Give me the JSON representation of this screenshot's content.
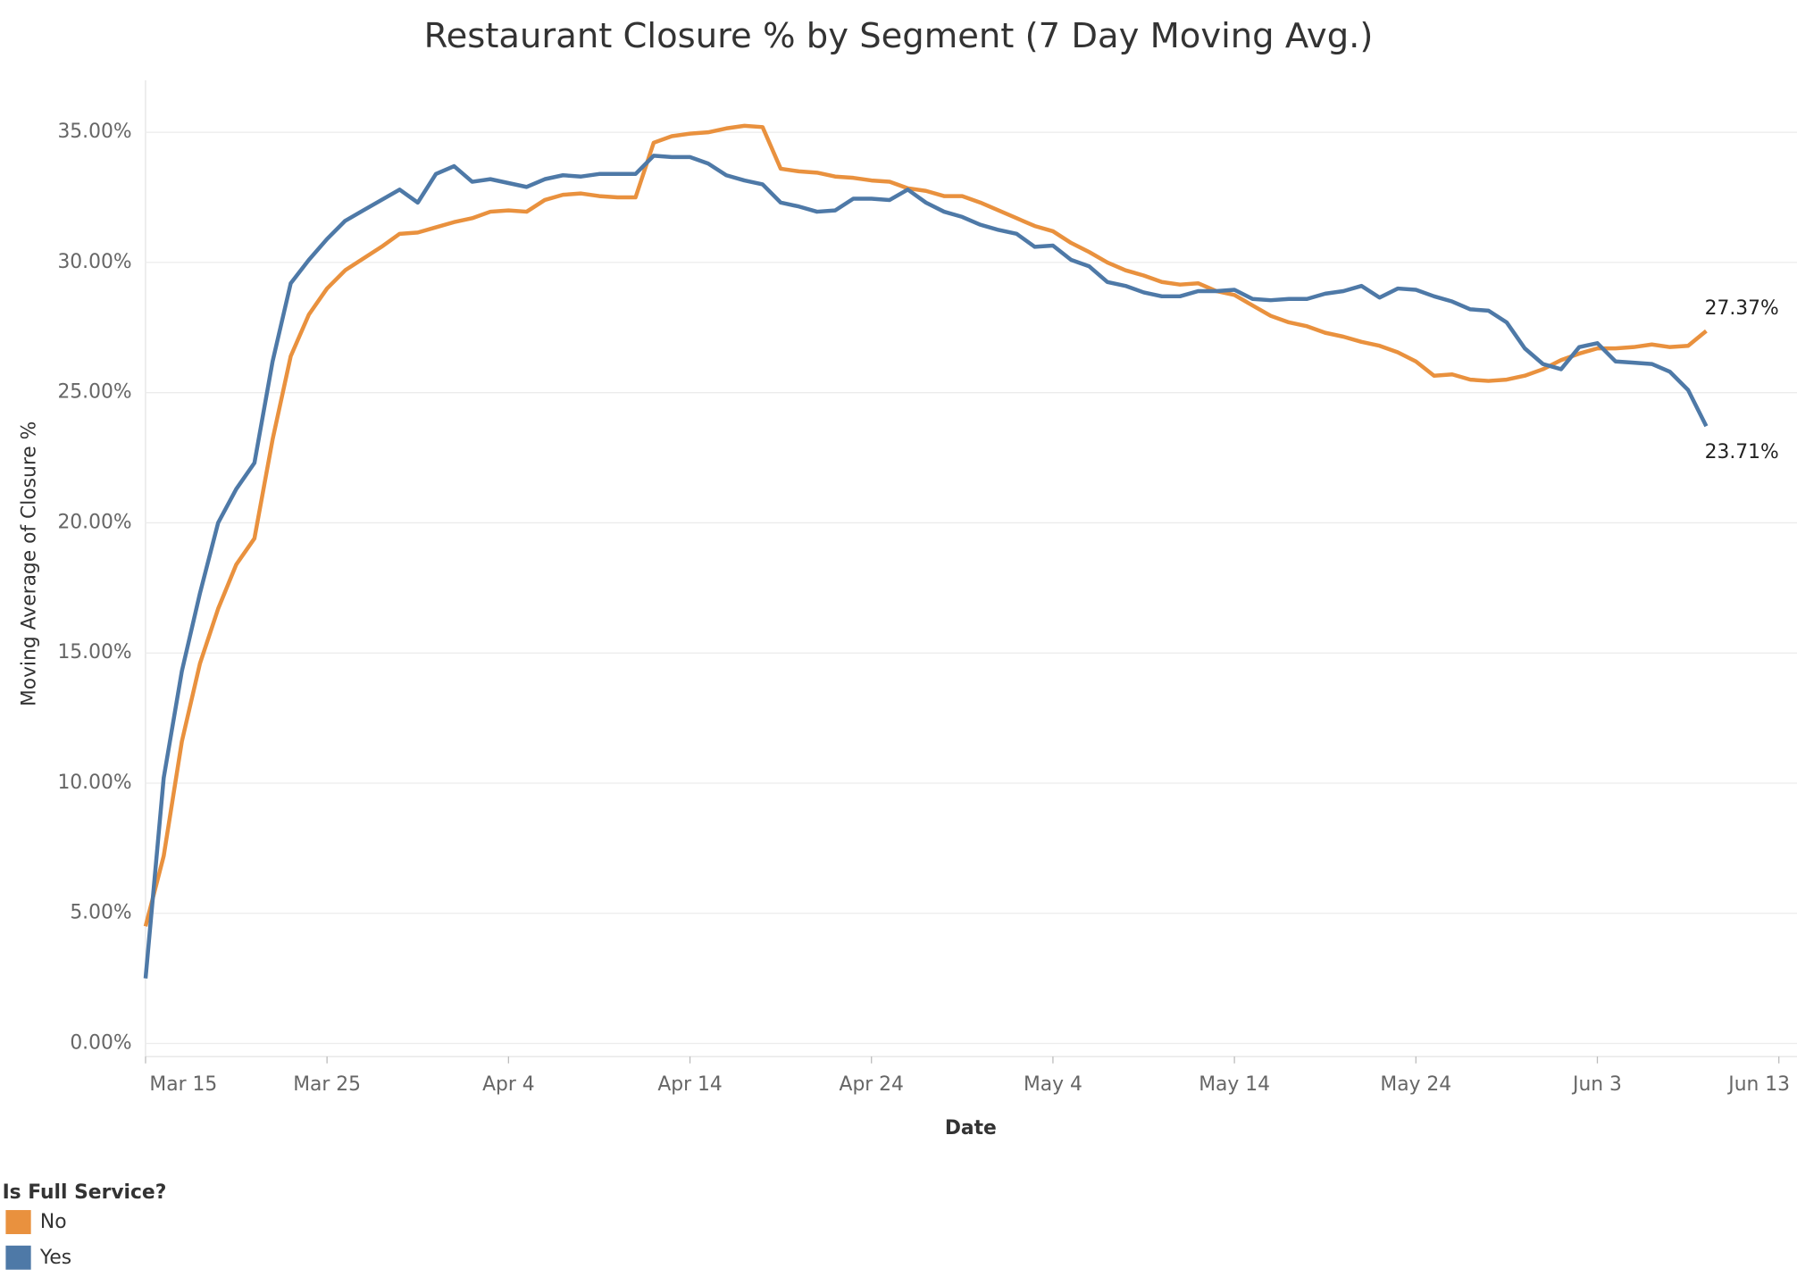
{
  "chart_data": {
    "type": "line",
    "title": "Restaurant Closure % by Segment (7 Day Moving Avg.)",
    "x_label": "Date",
    "y_label": "Moving Average of Closure %",
    "legend_title": "Is Full Service?",
    "legend": "bottom-left",
    "grid": true,
    "x": [
      "Mar 15",
      "Mar 16",
      "Mar 17",
      "Mar 18",
      "Mar 19",
      "Mar 20",
      "Mar 21",
      "Mar 22",
      "Mar 23",
      "Mar 24",
      "Mar 25",
      "Mar 26",
      "Mar 27",
      "Mar 28",
      "Mar 29",
      "Mar 30",
      "Mar 31",
      "Apr 1",
      "Apr 2",
      "Apr 3",
      "Apr 4",
      "Apr 5",
      "Apr 6",
      "Apr 7",
      "Apr 8",
      "Apr 9",
      "Apr 10",
      "Apr 11",
      "Apr 12",
      "Apr 13",
      "Apr 14",
      "Apr 15",
      "Apr 16",
      "Apr 17",
      "Apr 18",
      "Apr 19",
      "Apr 20",
      "Apr 21",
      "Apr 22",
      "Apr 23",
      "Apr 24",
      "Apr 25",
      "Apr 26",
      "Apr 27",
      "Apr 28",
      "Apr 29",
      "Apr 30",
      "May 1",
      "May 2",
      "May 3",
      "May 4",
      "May 5",
      "May 6",
      "May 7",
      "May 8",
      "May 9",
      "May 10",
      "May 11",
      "May 12",
      "May 13",
      "May 14",
      "May 15",
      "May 16",
      "May 17",
      "May 18",
      "May 19",
      "May 20",
      "May 21",
      "May 22",
      "May 23",
      "May 24",
      "May 25",
      "May 26",
      "May 27",
      "May 28",
      "May 29",
      "May 30",
      "May 31",
      "Jun 1",
      "Jun 2",
      "Jun 3",
      "Jun 4",
      "Jun 5",
      "Jun 6",
      "Jun 7",
      "Jun 8",
      "Jun 9"
    ],
    "xlim": [
      "Mar 15",
      "Jun 14"
    ],
    "xticks": [
      "Mar 15",
      "Mar 25",
      "Apr 4",
      "Apr 14",
      "Apr 24",
      "May 4",
      "May 14",
      "May 24",
      "Jun 3",
      "Jun 13"
    ],
    "ylim": [
      -0.5,
      37
    ],
    "yticks": [
      {
        "value": 0,
        "label": "0.00%"
      },
      {
        "value": 5,
        "label": "5.00%"
      },
      {
        "value": 10,
        "label": "10.00%"
      },
      {
        "value": 15,
        "label": "15.00%"
      },
      {
        "value": 20,
        "label": "20.00%"
      },
      {
        "value": 25,
        "label": "25.00%"
      },
      {
        "value": 30,
        "label": "30.00%"
      },
      {
        "value": 35,
        "label": "35.00%"
      }
    ],
    "series": [
      {
        "name": "No",
        "color": "#e9913e",
        "values": [
          4.5,
          7.2,
          11.6,
          14.6,
          16.7,
          18.4,
          19.4,
          23.2,
          26.4,
          28.0,
          29.0,
          29.7,
          30.15,
          30.6,
          31.1,
          31.15,
          31.35,
          31.55,
          31.7,
          31.95,
          32.0,
          31.95,
          32.4,
          32.6,
          32.65,
          32.55,
          32.5,
          32.5,
          34.6,
          34.85,
          34.95,
          35.0,
          35.15,
          35.25,
          35.2,
          33.6,
          33.5,
          33.45,
          33.3,
          33.25,
          33.15,
          33.1,
          32.85,
          32.75,
          32.55,
          32.55,
          32.3,
          32.0,
          31.7,
          31.4,
          31.2,
          30.75,
          30.4,
          30.0,
          29.7,
          29.5,
          29.25,
          29.15,
          29.2,
          28.9,
          28.75,
          28.35,
          27.95,
          27.7,
          27.55,
          27.3,
          27.15,
          26.95,
          26.8,
          26.55,
          26.2,
          25.65,
          25.7,
          25.5,
          25.45,
          25.5,
          25.65,
          25.9,
          26.25,
          26.5,
          26.7,
          26.7,
          26.75,
          26.85,
          26.75,
          26.8,
          27.37
        ],
        "value_labels": [
          null,
          null,
          null,
          null,
          null,
          null,
          null,
          null,
          null,
          null,
          null,
          null,
          null,
          null,
          null,
          null,
          null,
          null,
          null,
          null,
          null,
          null,
          null,
          null,
          null,
          null,
          null,
          null,
          null,
          null,
          null,
          null,
          null,
          null,
          null,
          null,
          null,
          null,
          null,
          null,
          null,
          null,
          null,
          null,
          null,
          null,
          null,
          null,
          null,
          null,
          null,
          null,
          null,
          null,
          null,
          null,
          null,
          null,
          null,
          null,
          null,
          null,
          null,
          null,
          null,
          null,
          null,
          null,
          null,
          null,
          null,
          null,
          null,
          null,
          null,
          null,
          null,
          null,
          null,
          null,
          null,
          null,
          null,
          null,
          null,
          null,
          "27.37%"
        ]
      },
      {
        "name": "Yes",
        "color": "#4e79a7",
        "values": [
          2.5,
          10.2,
          14.3,
          17.3,
          20.0,
          21.3,
          22.3,
          26.2,
          29.2,
          30.1,
          30.9,
          31.6,
          32.0,
          32.4,
          32.8,
          32.3,
          33.4,
          33.7,
          33.1,
          33.2,
          33.05,
          32.9,
          33.2,
          33.35,
          33.3,
          33.4,
          33.4,
          33.4,
          34.1,
          34.05,
          34.05,
          33.8,
          33.35,
          33.15,
          33.0,
          32.3,
          32.15,
          31.95,
          32.0,
          32.45,
          32.45,
          32.4,
          32.8,
          32.3,
          31.95,
          31.75,
          31.45,
          31.25,
          31.1,
          30.6,
          30.65,
          30.1,
          29.85,
          29.25,
          29.1,
          28.85,
          28.7,
          28.7,
          28.9,
          28.9,
          28.95,
          28.6,
          28.55,
          28.6,
          28.6,
          28.8,
          28.9,
          29.1,
          28.65,
          29.0,
          28.95,
          28.7,
          28.5,
          28.2,
          28.15,
          27.7,
          26.7,
          26.1,
          25.9,
          26.75,
          26.9,
          26.2,
          26.15,
          26.1,
          25.8,
          25.1,
          23.71
        ],
        "value_labels": [
          null,
          null,
          null,
          null,
          null,
          null,
          null,
          null,
          null,
          null,
          null,
          null,
          null,
          null,
          null,
          null,
          null,
          null,
          null,
          null,
          null,
          null,
          null,
          null,
          null,
          null,
          null,
          null,
          null,
          null,
          null,
          null,
          null,
          null,
          null,
          null,
          null,
          null,
          null,
          null,
          null,
          null,
          null,
          null,
          null,
          null,
          null,
          null,
          null,
          null,
          null,
          null,
          null,
          null,
          null,
          null,
          null,
          null,
          null,
          null,
          null,
          null,
          null,
          null,
          null,
          null,
          null,
          null,
          null,
          null,
          null,
          null,
          null,
          null,
          null,
          null,
          null,
          null,
          null,
          null,
          null,
          null,
          null,
          null,
          null,
          null,
          "23.71%"
        ]
      }
    ]
  }
}
